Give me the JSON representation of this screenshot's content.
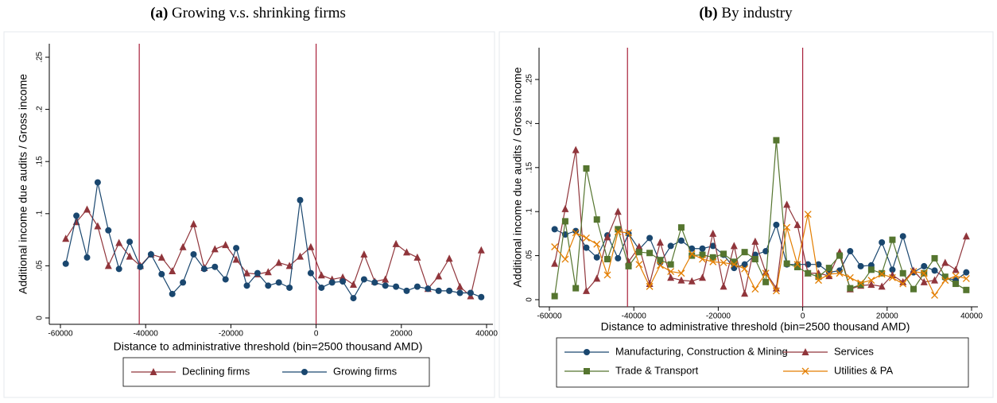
{
  "chart_data": [
    {
      "type": "line",
      "label": "(a)",
      "title": "Growing v.s. shrinking firms",
      "xlabel": "Distance to administrative threshold (bin=2500 thousand AMD)",
      "ylabel": "Additional income due audits / Gross income",
      "x": [
        -58750,
        -56250,
        -53750,
        -51250,
        -48750,
        -46250,
        -43750,
        -41250,
        -38750,
        -36250,
        -33750,
        -31250,
        -28750,
        -26250,
        -23750,
        -21250,
        -18750,
        -16250,
        -13750,
        -11250,
        -8750,
        -6250,
        -3750,
        -1250,
        1250,
        3750,
        6250,
        8750,
        11250,
        13750,
        16250,
        18750,
        21250,
        23750,
        26250,
        28750,
        31250,
        33750,
        36250,
        38750
      ],
      "series": [
        {
          "name": "Declining firms",
          "color": "#90353b",
          "marker": "triangle",
          "values": [
            0.076,
            0.092,
            0.104,
            0.088,
            0.05,
            0.072,
            0.059,
            0.05,
            0.061,
            0.058,
            0.045,
            0.068,
            0.09,
            0.048,
            0.066,
            0.07,
            0.056,
            0.043,
            0.042,
            0.044,
            0.053,
            0.05,
            0.059,
            0.068,
            0.041,
            0.037,
            0.039,
            0.032,
            0.061,
            0.035,
            0.037,
            0.071,
            0.063,
            0.058,
            0.028,
            0.04,
            0.057,
            0.03,
            0.021,
            0.065
          ]
        },
        {
          "name": "Growing firms",
          "color": "#1a476f",
          "marker": "circle",
          "values": [
            0.052,
            0.098,
            0.058,
            0.13,
            0.084,
            0.047,
            0.073,
            0.049,
            0.061,
            0.042,
            0.023,
            0.034,
            0.061,
            0.047,
            0.049,
            0.037,
            0.067,
            0.031,
            0.043,
            0.031,
            0.034,
            0.029,
            0.113,
            0.043,
            0.029,
            0.034,
            0.035,
            0.019,
            0.037,
            0.034,
            0.031,
            0.03,
            0.026,
            0.03,
            0.028,
            0.026,
            0.026,
            0.024,
            0.024,
            0.02
          ]
        }
      ],
      "xlim": [
        -60000,
        40000
      ],
      "ylim": [
        0,
        0.25
      ],
      "xticks": [
        -60000,
        -40000,
        -20000,
        0,
        20000,
        40000
      ],
      "yticks": [
        0,
        {
          "value": 0.05,
          "label": ".05"
        },
        {
          "value": 0.1,
          "label": ".1"
        },
        {
          "value": 0.15,
          "label": ".15"
        },
        {
          "value": 0.2,
          "label": ".2"
        },
        {
          "value": 0.25,
          "label": ".25"
        }
      ],
      "vlines": {
        "values": [
          -41500,
          0
        ],
        "color": "#a8203a"
      },
      "legend": "bottom"
    },
    {
      "type": "line",
      "label": "(b)",
      "title": "By industry",
      "xlabel": "Distance to administrative threshold (bin=2500 thousand AMD)",
      "ylabel": "Additional income due audits / Gross income",
      "x": [
        -58750,
        -56250,
        -53750,
        -51250,
        -48750,
        -46250,
        -43750,
        -41250,
        -38750,
        -36250,
        -33750,
        -31250,
        -28750,
        -26250,
        -23750,
        -21250,
        -18750,
        -16250,
        -13750,
        -11250,
        -8750,
        -6250,
        -3750,
        -1250,
        1250,
        3750,
        6250,
        8750,
        11250,
        13750,
        16250,
        18750,
        21250,
        23750,
        26250,
        28750,
        31250,
        33750,
        36250,
        38750
      ],
      "series": [
        {
          "name": "Manufacturing, Construction & Mining",
          "color": "#1a476f",
          "marker": "circle",
          "values": [
            0.08,
            0.074,
            0.078,
            0.059,
            0.048,
            0.073,
            0.047,
            0.075,
            0.057,
            0.07,
            0.042,
            0.061,
            0.067,
            0.058,
            0.058,
            0.061,
            0.051,
            0.036,
            0.04,
            0.051,
            0.055,
            0.085,
            0.04,
            0.04,
            0.04,
            0.04,
            0.031,
            0.033,
            0.055,
            0.038,
            0.039,
            0.065,
            0.034,
            0.072,
            0.031,
            0.038,
            0.033,
            0.025,
            0.022,
            0.031
          ]
        },
        {
          "name": "Services",
          "color": "#90353b",
          "marker": "triangle",
          "values": [
            0.041,
            0.103,
            0.17,
            0.01,
            0.024,
            0.071,
            0.1,
            0.043,
            0.06,
            0.018,
            0.065,
            0.025,
            0.022,
            0.021,
            0.025,
            0.075,
            0.015,
            0.061,
            0.007,
            0.066,
            0.031,
            0.013,
            0.108,
            0.085,
            0.03,
            0.03,
            0.027,
            0.054,
            0.012,
            0.016,
            0.017,
            0.015,
            0.028,
            0.02,
            0.033,
            0.02,
            0.022,
            0.042,
            0.034,
            0.072
          ]
        },
        {
          "name": "Trade & Transport",
          "color": "#55752f",
          "marker": "square",
          "values": [
            0.004,
            0.089,
            0.013,
            0.149,
            0.091,
            0.046,
            0.08,
            0.038,
            0.054,
            0.053,
            0.045,
            0.04,
            0.082,
            0.05,
            0.051,
            0.048,
            0.052,
            0.043,
            0.054,
            0.046,
            0.02,
            0.181,
            0.041,
            0.037,
            0.03,
            0.026,
            0.036,
            0.05,
            0.013,
            0.017,
            0.034,
            0.03,
            0.068,
            0.03,
            0.012,
            0.03,
            0.047,
            0.026,
            0.018,
            0.011
          ]
        },
        {
          "name": "Utilities & PA",
          "color": "#e37e00",
          "marker": "x",
          "values": [
            0.06,
            0.046,
            0.076,
            0.07,
            0.063,
            0.028,
            0.077,
            0.076,
            0.04,
            0.015,
            0.039,
            0.032,
            0.03,
            0.052,
            0.046,
            0.043,
            0.042,
            0.04,
            0.035,
            0.012,
            0.03,
            0.01,
            0.082,
            0.04,
            0.097,
            0.022,
            0.029,
            0.03,
            0.025,
            0.019,
            0.022,
            0.029,
            0.025,
            0.018,
            0.032,
            0.03,
            0.005,
            0.022,
            0.027,
            0.024
          ]
        }
      ],
      "xlim": [
        -60000,
        40000
      ],
      "ylim": [
        0,
        0.25
      ],
      "xticks": [
        -60000,
        -40000,
        -20000,
        0,
        20000,
        40000
      ],
      "yticks": [
        0,
        {
          "value": 0.05,
          "label": ".05"
        },
        {
          "value": 0.1,
          "label": ".1"
        },
        {
          "value": 0.15,
          "label": ".15"
        },
        {
          "value": 0.2,
          "label": ".2"
        },
        {
          "value": 0.25,
          "label": ".25"
        }
      ],
      "vlines": {
        "values": [
          -41500,
          0
        ],
        "color": "#a8203a"
      },
      "legend": "bottom"
    }
  ]
}
